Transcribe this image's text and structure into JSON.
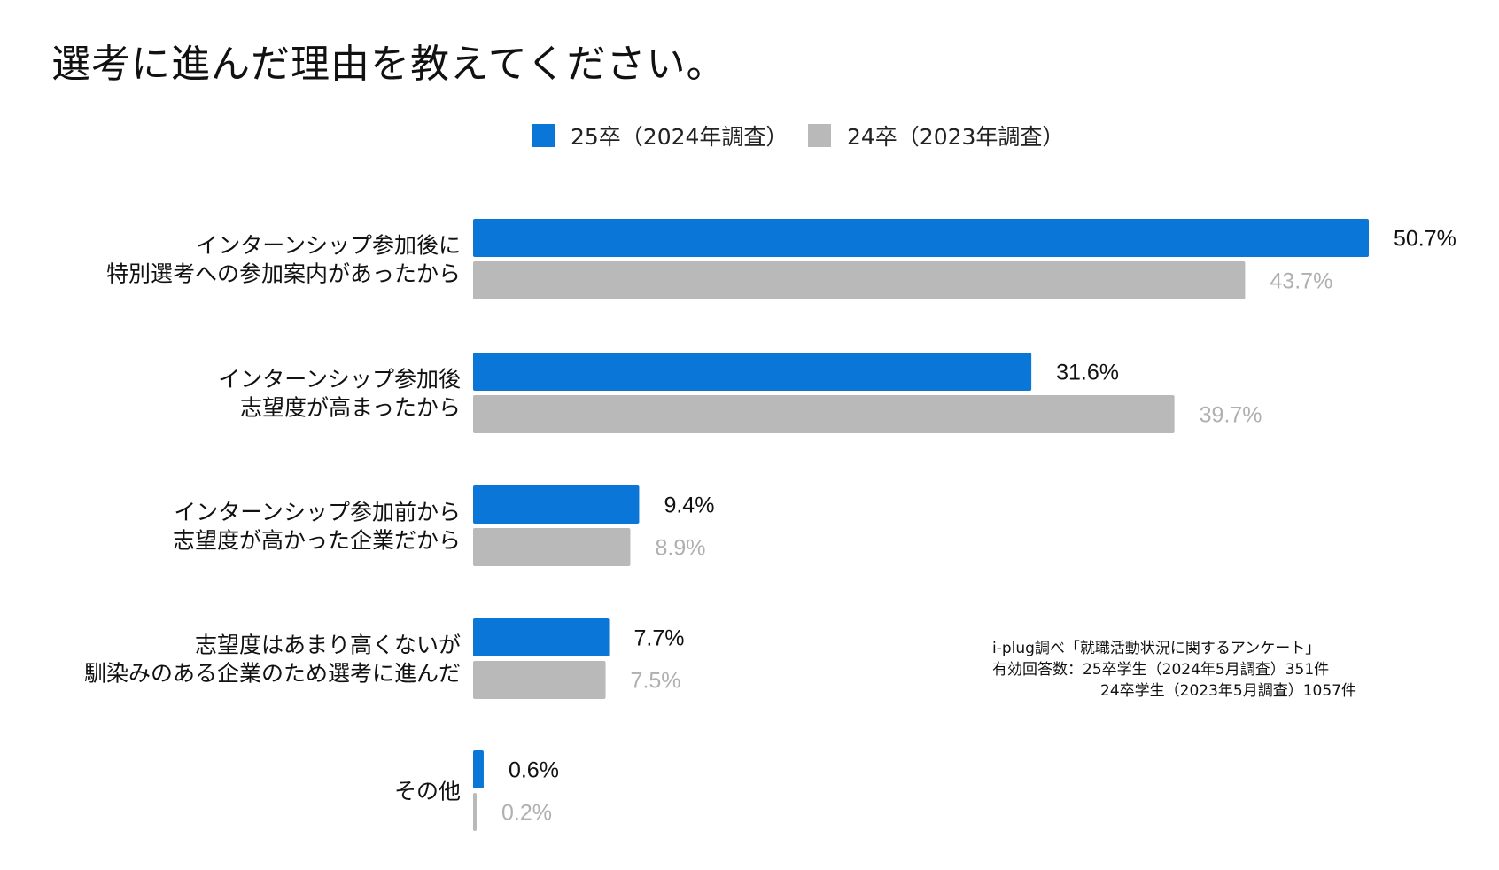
{
  "chart_data": {
    "type": "bar",
    "orientation": "horizontal",
    "title": "選考に進んだ理由を教えてください。",
    "categories": [
      [
        "インターンシップ参加後に",
        "特別選考への参加案内があったから"
      ],
      [
        "インターンシップ参加後",
        "志望度が高まったから"
      ],
      [
        "インターンシップ参加前から",
        "志望度が高かった企業だから"
      ],
      [
        "志望度はあまり高くないが",
        "馴染みのある企業のため選考に進んだ"
      ],
      [
        "その他"
      ]
    ],
    "series": [
      {
        "name": "25卒（2024年調査）",
        "color": "#0a77d8",
        "label_color": "#111111",
        "values": [
          50.7,
          31.6,
          9.4,
          7.7,
          0.6
        ],
        "labels": [
          "50.7%",
          "31.6%",
          "9.4%",
          "7.7%",
          "0.6%"
        ]
      },
      {
        "name": "24卒（2023年調査）",
        "color": "#b9b9b9",
        "label_color": "#b0b0b0",
        "values": [
          43.7,
          39.7,
          8.9,
          7.5,
          0.2
        ],
        "labels": [
          "43.7%",
          "39.7%",
          "8.9%",
          "7.5%",
          "0.2%"
        ]
      }
    ],
    "xlim": [
      0,
      50.7
    ],
    "unit": "%",
    "legend_position": "top-center",
    "grid": false
  },
  "source_note": {
    "line1": "i-plug調べ「就職活動状況に関するアンケート」",
    "line2": "有効回答数：25卒学生（2024年5月調査）351件",
    "line3": "24卒学生（2023年5月調査）1057件"
  }
}
